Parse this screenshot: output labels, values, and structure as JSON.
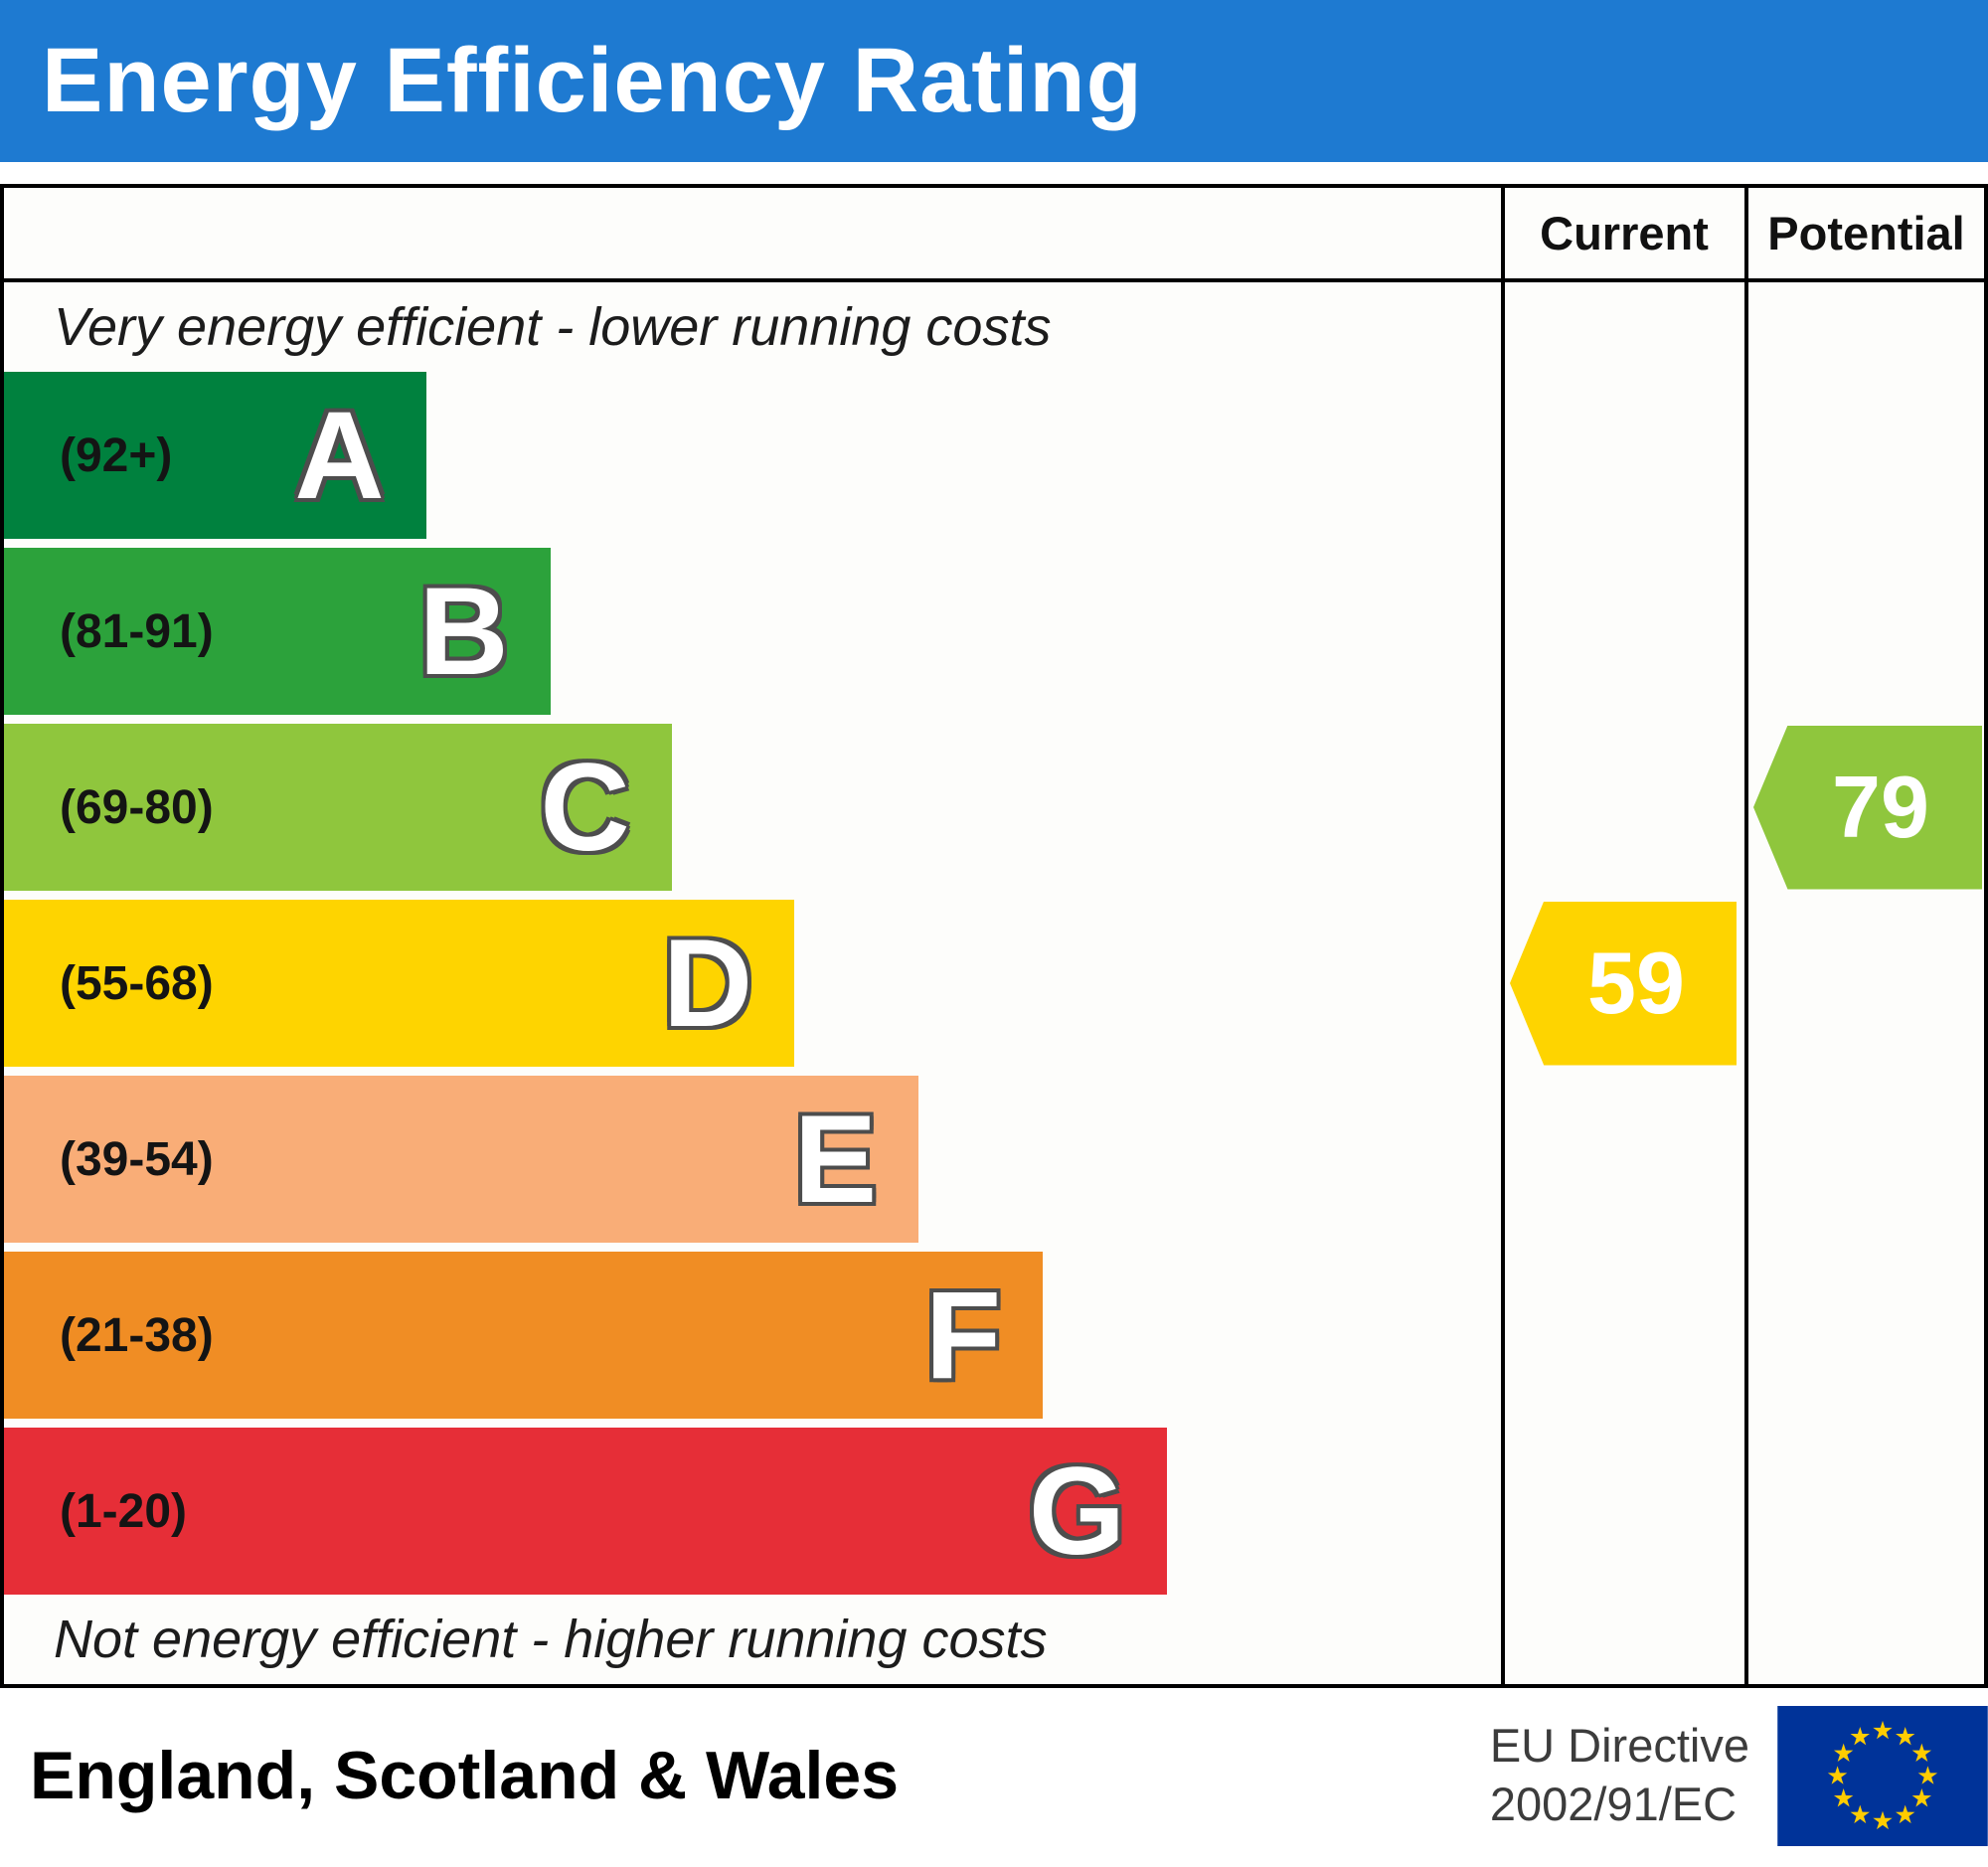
{
  "colors": {
    "header_bg": "#1e7ad1",
    "header_text": "#ffffff",
    "current_marker": "#fed400",
    "potential_marker": "#8fc63d",
    "eu_flag_blue": "#003399",
    "eu_flag_star": "#ffcc00"
  },
  "header": {
    "title": "Energy Efficiency Rating"
  },
  "columns": {
    "current": "Current",
    "potential": "Potential"
  },
  "captions": {
    "top": "Very energy efficient - lower running costs",
    "bottom": "Not energy efficient - higher running costs"
  },
  "chart_data": {
    "type": "bar",
    "title": "Energy Efficiency Rating",
    "bands": [
      {
        "letter": "A",
        "range": "(92+)",
        "color": "#00813e",
        "width_pct": 28.2
      },
      {
        "letter": "B",
        "range": "(81-91)",
        "color": "#2ca23b",
        "width_pct": 36.5
      },
      {
        "letter": "C",
        "range": "(69-80)",
        "color": "#8fc63d",
        "width_pct": 44.6
      },
      {
        "letter": "D",
        "range": "(55-68)",
        "color": "#fed400",
        "width_pct": 52.8
      },
      {
        "letter": "E",
        "range": "(39-54)",
        "color": "#f9ad77",
        "width_pct": 61.1
      },
      {
        "letter": "F",
        "range": "(21-38)",
        "color": "#f08d24",
        "width_pct": 69.4
      },
      {
        "letter": "G",
        "range": "(1-20)",
        "color": "#e62e37",
        "width_pct": 77.7
      }
    ],
    "current": {
      "label": "Current",
      "value": 59,
      "band": "D",
      "color": "#fed400"
    },
    "potential": {
      "label": "Potential",
      "value": 79,
      "band": "C",
      "color": "#8fc63d"
    }
  },
  "footer": {
    "region": "England, Scotland & Wales",
    "directive_line1": "EU Directive",
    "directive_line2": "2002/91/EC"
  }
}
